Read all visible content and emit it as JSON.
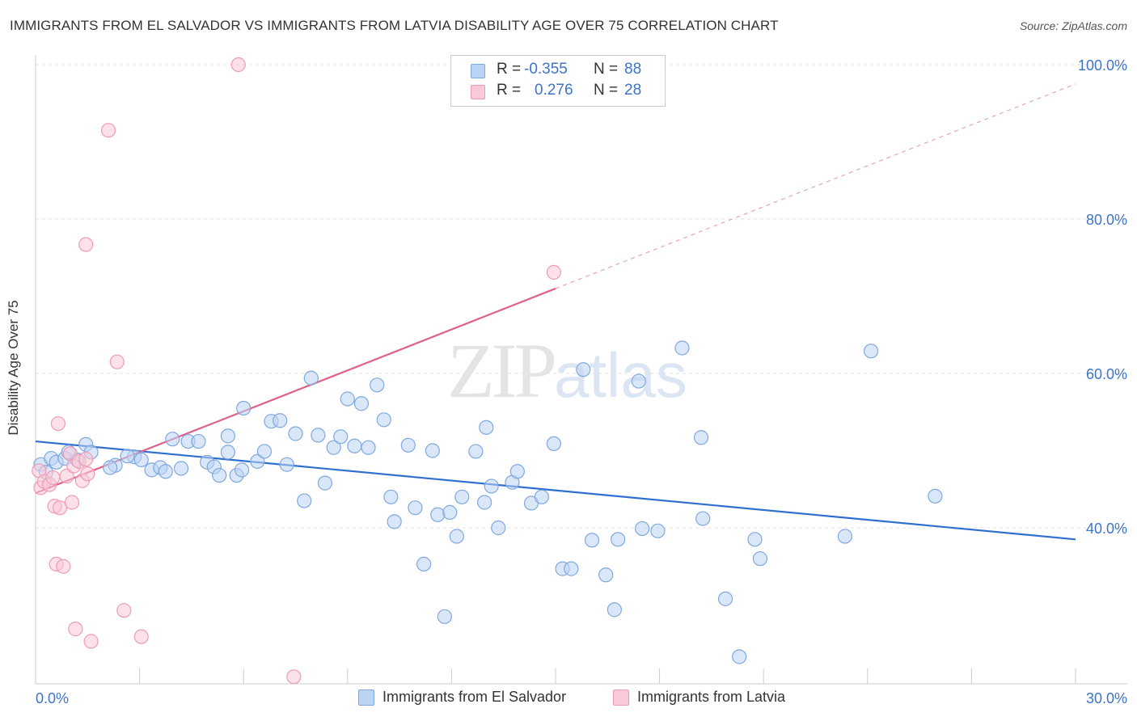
{
  "header": {
    "title": "IMMIGRANTS FROM EL SALVADOR VS IMMIGRANTS FROM LATVIA DISABILITY AGE OVER 75 CORRELATION CHART",
    "source": "Source: ZipAtlas.com"
  },
  "watermark": {
    "part1": "ZIP",
    "part2": "atlas"
  },
  "legend": {
    "rows": [
      {
        "r_label": "R =",
        "r_value": "-0.355",
        "n_label": "N =",
        "n_value": "88",
        "color": "#aac8f0"
      },
      {
        "r_label": "R =",
        "r_value": "0.276",
        "n_label": "N =",
        "n_value": "28",
        "color": "#f7b8cc"
      }
    ]
  },
  "bottom_legend": [
    {
      "label": "Immigrants from El Salvador",
      "color": "#aac8f0"
    },
    {
      "label": "Immigrants from Latvia",
      "color": "#f7b8cc"
    }
  ],
  "colors": {
    "blue_fill": "#bcd4f4",
    "blue_stroke": "#7fa9de",
    "blue_line": "#2f6fcf",
    "pink_fill": "#f9c9d7",
    "pink_stroke": "#ee9bb6",
    "pink_line": "#e0608c",
    "grid": "#e3e3e3",
    "tick_label": "#3d74c9"
  },
  "chart_data": {
    "type": "scatter",
    "title": "IMMIGRANTS FROM EL SALVADOR VS IMMIGRANTS FROM LATVIA DISABILITY AGE OVER 75 CORRELATION CHART",
    "xlabel": "",
    "ylabel": "Disability Age Over 75",
    "xlim": [
      0,
      30
    ],
    "ylim": [
      20.5,
      101
    ],
    "x_tick_labels": [
      "0.0%",
      "30.0%"
    ],
    "y_ticks": [
      40,
      60,
      80,
      100
    ],
    "y_tick_labels": [
      "40.0%",
      "60.0%",
      "80.0%",
      "100.0%"
    ],
    "grid": true,
    "series": [
      {
        "name": "Immigrants from El Salvador",
        "r": -0.355,
        "n": 88,
        "trend": {
          "x": [
            0,
            30
          ],
          "y": [
            51.2,
            38.5
          ],
          "dashed_extension": false
        },
        "points": [
          [
            0.15,
            48.2
          ],
          [
            0.3,
            47.2
          ],
          [
            0.45,
            49.0
          ],
          [
            0.6,
            48.5
          ],
          [
            0.85,
            49.0
          ],
          [
            1.2,
            48.8
          ],
          [
            0.95,
            49.8
          ],
          [
            1.45,
            50.8
          ],
          [
            1.6,
            49.8
          ],
          [
            2.3,
            48.1
          ],
          [
            2.15,
            47.8
          ],
          [
            2.85,
            49.2
          ],
          [
            2.65,
            49.3
          ],
          [
            3.05,
            48.8
          ],
          [
            3.35,
            47.5
          ],
          [
            3.6,
            47.8
          ],
          [
            3.75,
            47.3
          ],
          [
            3.95,
            51.5
          ],
          [
            4.2,
            47.7
          ],
          [
            4.4,
            51.2
          ],
          [
            4.7,
            51.2
          ],
          [
            4.95,
            48.5
          ],
          [
            5.15,
            47.9
          ],
          [
            5.3,
            46.8
          ],
          [
            5.55,
            49.8
          ],
          [
            5.8,
            46.8
          ],
          [
            5.95,
            47.5
          ],
          [
            5.55,
            51.9
          ],
          [
            6.0,
            55.5
          ],
          [
            6.4,
            48.6
          ],
          [
            6.6,
            49.9
          ],
          [
            6.8,
            53.8
          ],
          [
            7.05,
            53.9
          ],
          [
            7.25,
            48.2
          ],
          [
            7.5,
            52.2
          ],
          [
            7.75,
            43.5
          ],
          [
            7.95,
            59.4
          ],
          [
            8.15,
            52.0
          ],
          [
            8.35,
            45.8
          ],
          [
            8.6,
            50.4
          ],
          [
            8.8,
            51.8
          ],
          [
            9.0,
            56.7
          ],
          [
            9.2,
            50.6
          ],
          [
            9.4,
            56.1
          ],
          [
            9.6,
            50.4
          ],
          [
            9.85,
            58.5
          ],
          [
            10.05,
            54.0
          ],
          [
            10.25,
            44.0
          ],
          [
            10.35,
            40.8
          ],
          [
            10.75,
            50.7
          ],
          [
            10.95,
            42.6
          ],
          [
            11.2,
            35.3
          ],
          [
            11.45,
            50.0
          ],
          [
            11.6,
            41.7
          ],
          [
            11.8,
            28.5
          ],
          [
            11.95,
            42.0
          ],
          [
            12.15,
            38.9
          ],
          [
            12.3,
            44.0
          ],
          [
            12.7,
            49.9
          ],
          [
            12.95,
            43.3
          ],
          [
            13.0,
            53.0
          ],
          [
            13.15,
            45.4
          ],
          [
            13.35,
            40.0
          ],
          [
            13.75,
            45.9
          ],
          [
            13.9,
            47.3
          ],
          [
            14.3,
            43.2
          ],
          [
            14.6,
            44.0
          ],
          [
            14.95,
            50.9
          ],
          [
            15.2,
            34.7
          ],
          [
            15.45,
            34.7
          ],
          [
            15.8,
            60.5
          ],
          [
            16.05,
            38.4
          ],
          [
            16.45,
            33.9
          ],
          [
            16.7,
            29.4
          ],
          [
            16.8,
            38.5
          ],
          [
            17.4,
            59.0
          ],
          [
            17.5,
            39.9
          ],
          [
            17.95,
            39.6
          ],
          [
            18.65,
            63.3
          ],
          [
            19.2,
            51.7
          ],
          [
            19.25,
            41.2
          ],
          [
            19.9,
            30.8
          ],
          [
            20.3,
            23.3
          ],
          [
            20.75,
            38.5
          ],
          [
            20.9,
            36.0
          ],
          [
            23.35,
            38.9
          ],
          [
            24.1,
            62.9
          ],
          [
            25.95,
            44.1
          ]
        ]
      },
      {
        "name": "Immigrants from Latvia",
        "r": 0.276,
        "n": 28,
        "trend": {
          "x": [
            0,
            15
          ],
          "y": [
            44.5,
            71.0
          ],
          "dashed_extension": true,
          "dashed_to": [
            30,
            97.5
          ]
        },
        "points": [
          [
            0.1,
            47.4
          ],
          [
            0.15,
            45.2
          ],
          [
            0.25,
            46.0
          ],
          [
            0.4,
            45.6
          ],
          [
            0.5,
            46.5
          ],
          [
            0.55,
            42.8
          ],
          [
            0.65,
            53.5
          ],
          [
            0.6,
            35.3
          ],
          [
            0.7,
            42.6
          ],
          [
            0.8,
            35.0
          ],
          [
            0.9,
            46.7
          ],
          [
            1.0,
            49.6
          ],
          [
            1.05,
            43.3
          ],
          [
            1.1,
            48.0
          ],
          [
            1.15,
            26.9
          ],
          [
            1.25,
            48.6
          ],
          [
            1.35,
            46.1
          ],
          [
            1.45,
            48.9
          ],
          [
            1.5,
            47.0
          ],
          [
            1.6,
            25.3
          ],
          [
            1.45,
            76.7
          ],
          [
            2.1,
            91.5
          ],
          [
            2.35,
            61.5
          ],
          [
            2.55,
            29.3
          ],
          [
            3.05,
            25.9
          ],
          [
            5.85,
            100.0
          ],
          [
            7.45,
            20.7
          ],
          [
            14.95,
            73.1
          ]
        ]
      }
    ]
  }
}
